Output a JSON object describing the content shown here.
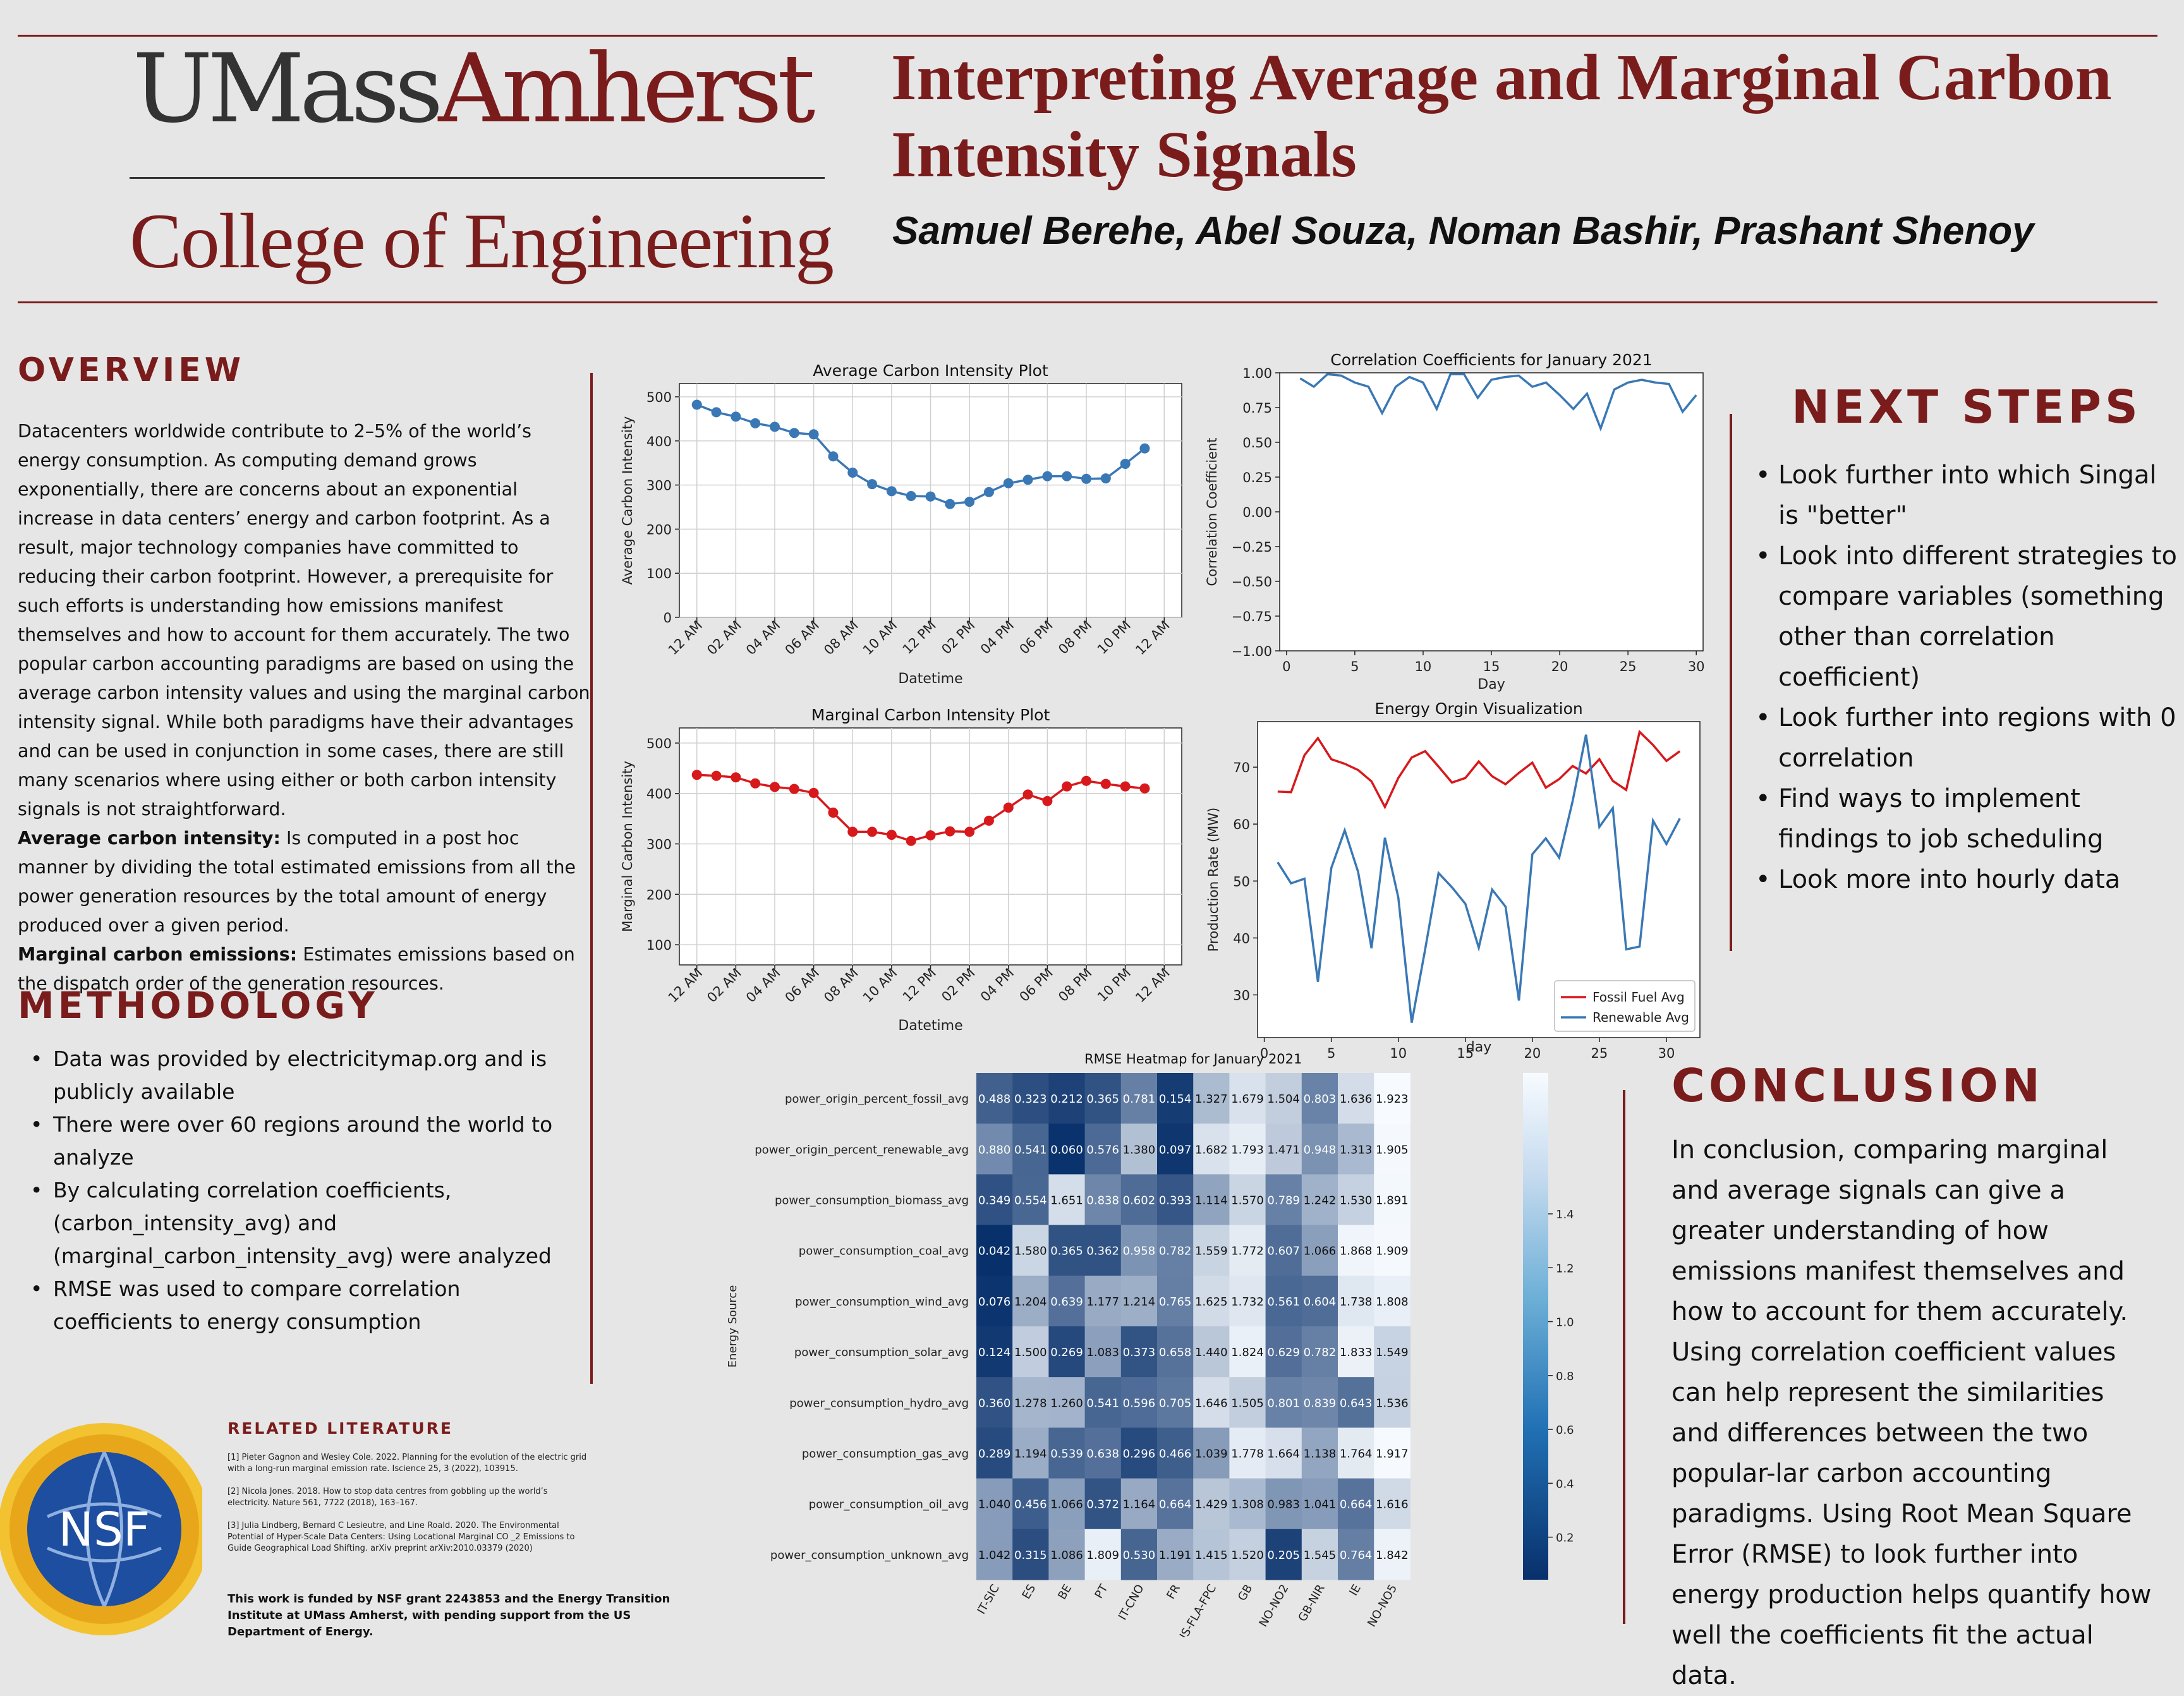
{
  "header": {
    "logo_part1": "UMass",
    "logo_part2": "Amherst",
    "college": "College of Engineering",
    "title": "Interpreting Average and Marginal Carbon Intensity Signals",
    "authors": "Samuel Berehe, Abel Souza, Noman Bashir, Prashant Shenoy"
  },
  "overview": {
    "heading": "OVERVIEW",
    "p1": "Datacenters worldwide contribute to 2–5% of the world’s energy consumption. As computing demand grows exponentially, there are concerns about an exponential increase in data centers’ energy and carbon footprint. As a result, major technology companies have committed to reducing their carbon footprint. However, a prerequisite for such efforts is understanding how emissions manifest themselves and how to account for them accurately. The two popular carbon accounting paradigms are based on using the average carbon intensity values and using the marginal carbon intensity signal. While both paradigms have their advantages and can be used in conjunction in some cases, there are still many scenarios where using either or both carbon intensity signals is not straightforward.",
    "avg_label": "Average carbon intensity:",
    "avg_text": " Is computed in a post hoc manner by dividing the total estimated emissions from all the power generation resources by the total amount of energy produced over a given period.",
    "marg_label": "Marginal carbon emissions:",
    "marg_text": " Estimates emissions based on the dispatch order of the generation resources."
  },
  "methodology": {
    "heading": "METHODOLOGY",
    "items": [
      "Data was provided by electricitymap.org and is publicly available",
      "There were over 60 regions around the world to analyze",
      "By calculating correlation coefficients, (carbon_intensity_avg) and (marginal_carbon_intensity_avg) were analyzed",
      "RMSE was used to compare correlation coefficients to energy consumption"
    ]
  },
  "literature": {
    "heading": "RELATED LITERATURE",
    "refs": [
      "[1] Pieter Gagnon and Wesley Cole. 2022. Planning for the evolution of the electric grid with a long-run marginal emission rate. Iscience 25, 3 (2022), 103915.",
      "[2] Nicola Jones. 2018. How to stop data centres from gobbling up the world’s electricity. Nature 561, 7722 (2018), 163–167.",
      "[3] Julia Lindberg, Bernard C Lesieutre, and Line Roald. 2020. The Environmental Potential of Hyper-Scale Data Centers: Using Locational Marginal CO _2 Emissions to Guide Geographical Load Shifting. arXiv preprint arXiv:2010.03379 (2020)"
    ],
    "funding": "This work is funded by NSF grant 2243853 and the Energy Transition Institute at UMass Amherst, with pending support from the US Department of Energy.",
    "nsf_logo": "NSF"
  },
  "next_steps": {
    "heading": "NEXT STEPS",
    "items": [
      "Look further into which Singal is \"better\"",
      "Look into different strategies to compare variables (something other than correlation coefficient)",
      "Look further into regions with 0 correlation",
      "Find ways to implement findings to job scheduling",
      "Look more into hourly data"
    ]
  },
  "conclusion": {
    "heading": "CONCLUSION",
    "text": "In conclusion, comparing marginal and average signals can give a greater understanding of how emissions manifest themselves and how to account for them accurately. Using correlation coefficient values can help represent the similarities and differences between the two popular-lar carbon accounting paradigms. Using Root Mean Square Error (RMSE) to look further into energy production helps quantify how well the coefficients fit the actual data."
  },
  "chart_data": [
    {
      "type": "line",
      "title": "Average Carbon Intensity Plot",
      "xlabel": "Datetime",
      "ylabel": "Average Carbon Intensity",
      "xticks": [
        "12 AM",
        "02 AM",
        "04 AM",
        "06 AM",
        "08 AM",
        "10 AM",
        "12 PM",
        "02 PM",
        "04 PM",
        "06 PM",
        "08 PM",
        "10 PM",
        "12 AM"
      ],
      "yticks": [
        0,
        100,
        200,
        300,
        400,
        500
      ],
      "ylim": [
        0,
        530
      ],
      "x_hours": [
        0,
        1,
        2,
        3,
        4,
        5,
        6,
        7,
        8,
        9,
        10,
        11,
        12,
        13,
        14,
        15,
        16,
        17,
        18,
        19,
        20,
        21,
        22,
        23
      ],
      "values": [
        482,
        465,
        455,
        440,
        432,
        418,
        415,
        365,
        328,
        302,
        286,
        275,
        274,
        257,
        262,
        284,
        304,
        312,
        320,
        320,
        314,
        315,
        348,
        383
      ],
      "color": "#3a78b5",
      "marker": "circle",
      "grid": true
    },
    {
      "type": "line",
      "title": "Marginal Carbon Intensity Plot",
      "xlabel": "Datetime",
      "ylabel": "Marginal Carbon Intensity",
      "xticks": [
        "12 AM",
        "02 AM",
        "04 AM",
        "06 AM",
        "08 AM",
        "10 AM",
        "12 PM",
        "02 PM",
        "04 PM",
        "06 PM",
        "08 PM",
        "10 PM",
        "12 AM"
      ],
      "yticks": [
        100,
        200,
        300,
        400,
        500
      ],
      "ylim": [
        60,
        530
      ],
      "x_hours": [
        0,
        1,
        2,
        3,
        4,
        5,
        6,
        7,
        8,
        9,
        10,
        11,
        12,
        13,
        14,
        15,
        16,
        17,
        18,
        19,
        20,
        21,
        22,
        23
      ],
      "values": [
        437,
        435,
        432,
        420,
        413,
        409,
        401,
        362,
        324,
        324,
        318,
        306,
        317,
        325,
        324,
        346,
        372,
        398,
        385,
        414,
        425,
        419,
        414,
        410
      ],
      "color": "#d7191c",
      "marker": "circle",
      "grid": true
    },
    {
      "type": "line",
      "title": "Correlation Coefficients for January 2021",
      "xlabel": "Day",
      "ylabel": "Correlation Coefficient",
      "xticks": [
        0,
        5,
        10,
        15,
        20,
        25,
        30
      ],
      "yticks": [
        -1.0,
        -0.75,
        -0.5,
        -0.25,
        0.0,
        0.25,
        0.5,
        0.75,
        1.0
      ],
      "ytick_labels": [
        "−1.00",
        "−0.75",
        "−0.50",
        "−0.25",
        "0.00",
        "0.25",
        "0.50",
        "0.75",
        "1.00"
      ],
      "xlim": [
        -0.5,
        30.5
      ],
      "ylim": [
        -1.0,
        1.0
      ],
      "x": [
        1,
        2,
        3,
        4,
        5,
        6,
        7,
        8,
        9,
        10,
        11,
        12,
        13,
        14,
        15,
        16,
        17,
        18,
        19,
        20,
        21,
        22,
        23,
        24,
        25,
        26,
        27,
        28,
        29,
        30
      ],
      "values": [
        0.96,
        0.9,
        0.99,
        0.98,
        0.93,
        0.9,
        0.71,
        0.9,
        0.97,
        0.93,
        0.74,
        0.99,
        0.99,
        0.82,
        0.95,
        0.97,
        0.98,
        0.9,
        0.93,
        0.84,
        0.74,
        0.85,
        0.6,
        0.88,
        0.93,
        0.95,
        0.93,
        0.92,
        0.72,
        0.84
      ],
      "color": "#3a78b5",
      "grid": false
    },
    {
      "type": "line",
      "title": "Energy Orgin Visualization",
      "xlabel": "day",
      "ylabel": "Production Rate (MW)",
      "xticks": [
        0,
        5,
        10,
        15,
        20,
        25,
        30
      ],
      "yticks": [
        30,
        40,
        50,
        60,
        70
      ],
      "xlim": [
        -0.5,
        32.5
      ],
      "ylim": [
        22.5,
        78
      ],
      "x": [
        1,
        2,
        3,
        4,
        5,
        6,
        7,
        8,
        9,
        10,
        11,
        12,
        13,
        14,
        15,
        16,
        17,
        18,
        19,
        20,
        21,
        22,
        23,
        24,
        25,
        26,
        27,
        28,
        29,
        30,
        31
      ],
      "series": [
        {
          "name": "Fossil Fuel Avg",
          "color": "#d7191c",
          "values": [
            65.7,
            65.6,
            72.1,
            75.1,
            71.4,
            70.6,
            69.5,
            67.5,
            63,
            68.1,
            71.7,
            72.8,
            70.1,
            67.3,
            68.1,
            71,
            68.4,
            67,
            69,
            70.8,
            66.4,
            67.9,
            70.2,
            68.9,
            71.4,
            67.6,
            66,
            76.2,
            73.9,
            71.1,
            72.8
          ]
        },
        {
          "name": "Renewable Avg",
          "color": "#3a78b5",
          "values": [
            53.3,
            49.6,
            50.4,
            32.3,
            52.3,
            58.9,
            51.6,
            38.2,
            57.6,
            47.1,
            25.1,
            38,
            51.4,
            48.9,
            46,
            38.3,
            48.5,
            45.5,
            29,
            54.7,
            57.5,
            54.1,
            64,
            75.7,
            59.5,
            62.8,
            38,
            38.5,
            60.6,
            56.5,
            61
          ]
        }
      ],
      "legend_position": "lower-right",
      "grid": false
    },
    {
      "type": "heatmap",
      "title": "RMSE Heatmap for January 2021",
      "ylabel": "Energy Source",
      "columns": [
        "IT-SIC",
        "ES",
        "BE",
        "PT",
        "IT-CNO",
        "FR",
        "US-FLA-FPC",
        "GB",
        "NO-NO2",
        "GB-NIR",
        "IE",
        "NO-NO5"
      ],
      "rows": [
        "power_origin_percent_fossil_avg",
        "power_origin_percent_renewable_avg",
        "power_consumption_biomass_avg",
        "power_consumption_coal_avg",
        "power_consumption_wind_avg",
        "power_consumption_solar_avg",
        "power_consumption_hydro_avg",
        "power_consumption_gas_avg",
        "power_consumption_oil_avg",
        "power_consumption_unknown_avg"
      ],
      "values": [
        [
          0.488,
          0.323,
          0.212,
          0.365,
          0.781,
          0.154,
          1.327,
          1.679,
          1.504,
          0.803,
          1.636,
          1.923
        ],
        [
          0.88,
          0.541,
          0.06,
          0.576,
          1.38,
          0.097,
          1.682,
          1.793,
          1.471,
          0.948,
          1.313,
          1.905
        ],
        [
          0.349,
          0.554,
          1.651,
          0.838,
          0.602,
          0.393,
          1.114,
          1.57,
          0.789,
          1.242,
          1.53,
          1.891
        ],
        [
          0.042,
          1.58,
          0.365,
          0.362,
          0.958,
          0.782,
          1.559,
          1.772,
          0.607,
          1.066,
          1.868,
          1.909
        ],
        [
          0.076,
          1.204,
          0.639,
          1.177,
          1.214,
          0.765,
          1.625,
          1.732,
          0.561,
          0.604,
          1.738,
          1.808
        ],
        [
          0.124,
          1.5,
          0.269,
          1.083,
          0.373,
          0.658,
          1.44,
          1.824,
          0.629,
          0.782,
          1.833,
          1.549
        ],
        [
          0.36,
          1.278,
          1.26,
          0.541,
          0.596,
          0.705,
          1.646,
          1.505,
          0.801,
          0.839,
          0.643,
          1.536
        ],
        [
          0.289,
          1.194,
          0.539,
          0.638,
          0.296,
          0.466,
          1.039,
          1.778,
          1.664,
          1.138,
          1.764,
          1.917
        ],
        [
          1.04,
          0.456,
          1.066,
          0.372,
          1.164,
          0.664,
          1.429,
          1.308,
          0.983,
          1.041,
          0.664,
          1.616
        ],
        [
          1.042,
          0.315,
          1.086,
          1.809,
          0.53,
          1.191,
          1.415,
          1.52,
          0.205,
          1.545,
          0.764,
          1.842
        ]
      ],
      "colorbar_ticks": [
        0.2,
        0.4,
        0.6,
        0.8,
        1.0,
        1.2,
        1.4
      ],
      "colorbar_range": [
        0.042,
        1.923
      ],
      "colormap": "Blues_r"
    }
  ]
}
